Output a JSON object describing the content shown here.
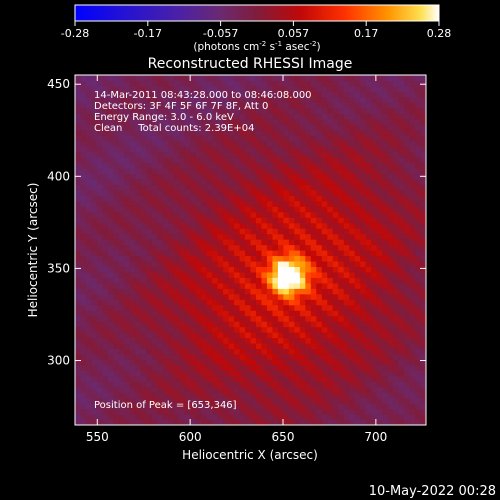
{
  "colorbar": {
    "ticks": [
      "-0.28",
      "-0.17",
      "-0.057",
      "0.057",
      "0.17",
      "0.28"
    ],
    "range": [
      -0.28,
      0.28
    ],
    "unit_main": "(photons cm",
    "unit_exp1": "-2",
    "unit_mid": " s",
    "unit_exp2": "-1",
    "unit_tail": " asec",
    "unit_exp3": "-2",
    "unit_close": ")"
  },
  "plot": {
    "title": "Reconstructed RHESSI Image",
    "xlabel": "Heliocentric X (arcsec)",
    "ylabel": "Heliocentric Y (arcsec)",
    "xlim": [
      538,
      727
    ],
    "ylim": [
      265,
      455
    ],
    "xticks": [
      {
        "value": 550,
        "label": "550"
      },
      {
        "value": 600,
        "label": "600"
      },
      {
        "value": 650,
        "label": "650"
      },
      {
        "value": 700,
        "label": "700"
      }
    ],
    "yticks": [
      {
        "value": 300,
        "label": "300"
      },
      {
        "value": 350,
        "label": "350"
      },
      {
        "value": 400,
        "label": "400"
      },
      {
        "value": 450,
        "label": "450"
      }
    ],
    "info": [
      "14-Mar-2011 08:43:28.000 to 08:46:08.000",
      "Detectors: 3F 4F 5F 6F 7F 8F, Att 0",
      "Energy Range: 3.0 - 6.0 keV",
      "Clean     Total counts: 2.39E+04"
    ],
    "peak_label": "Position of Peak = [653,346]",
    "peak": {
      "x": 653,
      "y": 346
    }
  },
  "timestamp": "10-May-2022 00:28",
  "colors": {
    "background": "#000000",
    "text": "#ffffff",
    "colormap": [
      "#0000ff",
      "#3010c8",
      "#5a2a9a",
      "#6a2a70",
      "#8a1a30",
      "#c80000",
      "#ff3000",
      "#ff9000",
      "#ffe040",
      "#ffffff"
    ]
  }
}
